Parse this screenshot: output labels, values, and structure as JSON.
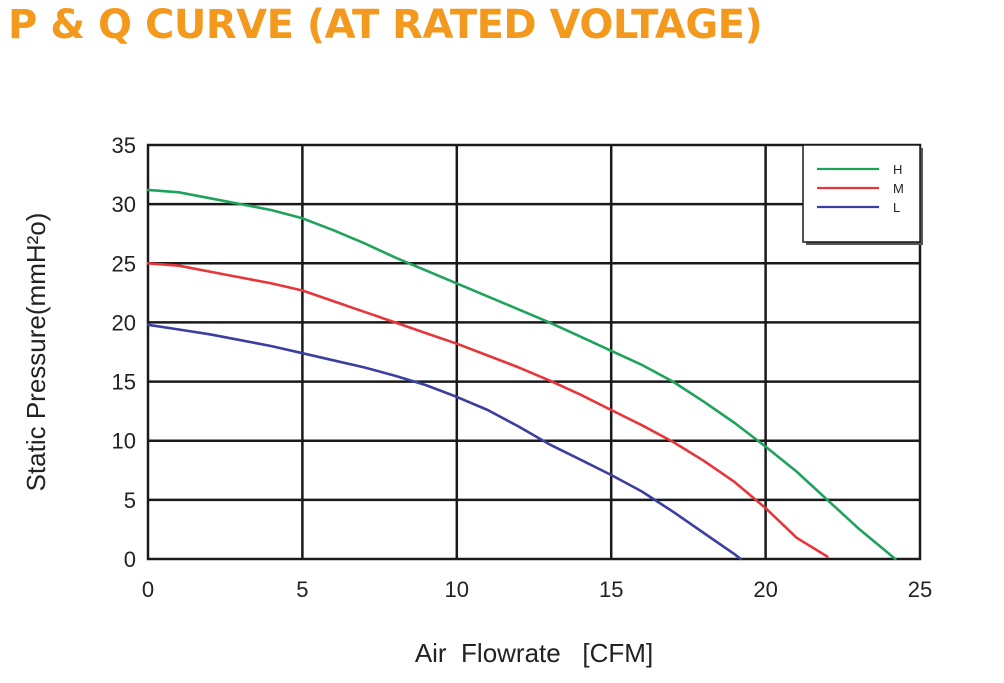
{
  "chart_data": {
    "type": "line",
    "title": "P & Q CURVE (AT RATED VOLTAGE)",
    "xlabel": "Air  Flowrate   [CFM]",
    "ylabel": "Static Pressure(mmH²o)",
    "xlim": [
      0,
      25
    ],
    "ylim": [
      0,
      35
    ],
    "xticks": [
      0,
      5,
      10,
      15,
      20,
      25
    ],
    "yticks": [
      0,
      5,
      10,
      15,
      20,
      25,
      30,
      35
    ],
    "grid": true,
    "legend_position": "top-right",
    "series": [
      {
        "name": "H",
        "color": "#1fa35c",
        "points": [
          [
            0,
            31.2
          ],
          [
            1,
            31.0
          ],
          [
            2,
            30.5
          ],
          [
            3,
            30.0
          ],
          [
            4,
            29.5
          ],
          [
            5,
            28.8
          ],
          [
            6,
            27.8
          ],
          [
            7,
            26.7
          ],
          [
            8,
            25.5
          ],
          [
            9,
            24.4
          ],
          [
            10,
            23.3
          ],
          [
            11,
            22.2
          ],
          [
            12,
            21.1
          ],
          [
            13,
            20.0
          ],
          [
            14,
            18.8
          ],
          [
            15,
            17.6
          ],
          [
            16,
            16.4
          ],
          [
            17,
            15.0
          ],
          [
            18,
            13.3
          ],
          [
            19,
            11.5
          ],
          [
            20,
            9.5
          ],
          [
            21,
            7.4
          ],
          [
            22,
            5.0
          ],
          [
            23,
            2.6
          ],
          [
            24.2,
            0
          ]
        ]
      },
      {
        "name": "M",
        "color": "#e8353a",
        "points": [
          [
            0,
            25.0
          ],
          [
            1,
            24.8
          ],
          [
            2,
            24.3
          ],
          [
            3,
            23.8
          ],
          [
            4,
            23.3
          ],
          [
            5,
            22.7
          ],
          [
            6,
            21.8
          ],
          [
            7,
            20.9
          ],
          [
            8,
            20.0
          ],
          [
            9,
            19.1
          ],
          [
            10,
            18.2
          ],
          [
            11,
            17.2
          ],
          [
            12,
            16.2
          ],
          [
            13,
            15.1
          ],
          [
            14,
            13.9
          ],
          [
            15,
            12.6
          ],
          [
            16,
            11.3
          ],
          [
            17,
            9.9
          ],
          [
            18,
            8.3
          ],
          [
            19,
            6.5
          ],
          [
            20,
            4.3
          ],
          [
            21,
            1.8
          ],
          [
            22,
            0.2
          ]
        ]
      },
      {
        "name": "L",
        "color": "#3a3fa0",
        "points": [
          [
            0,
            19.8
          ],
          [
            1,
            19.4
          ],
          [
            2,
            19.0
          ],
          [
            3,
            18.5
          ],
          [
            4,
            18.0
          ],
          [
            5,
            17.4
          ],
          [
            6,
            16.8
          ],
          [
            7,
            16.2
          ],
          [
            8,
            15.5
          ],
          [
            9,
            14.7
          ],
          [
            10,
            13.7
          ],
          [
            11,
            12.6
          ],
          [
            12,
            11.2
          ],
          [
            13,
            9.7
          ],
          [
            14,
            8.4
          ],
          [
            15,
            7.1
          ],
          [
            16,
            5.7
          ],
          [
            17,
            4.0
          ],
          [
            18,
            2.2
          ],
          [
            19,
            0.4
          ],
          [
            19.2,
            0
          ]
        ]
      }
    ]
  }
}
